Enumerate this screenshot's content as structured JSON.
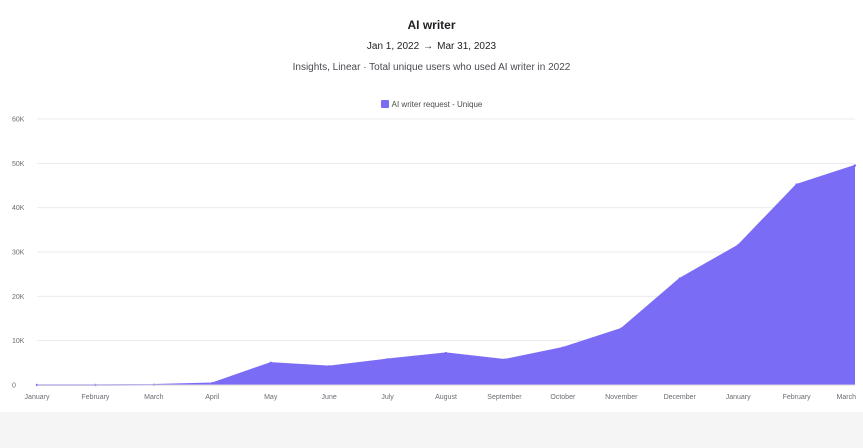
{
  "header": {
    "title": "AI writer",
    "date_start": "Jan 1, 2022",
    "date_arrow": "→",
    "date_end": "Mar 31, 2023",
    "subtitle": "Insights, Linear · Total unique users who used AI writer in 2022"
  },
  "legend": {
    "label": "AI writer request - Unique",
    "color": "#7b6cf6"
  },
  "chart_data": {
    "type": "area",
    "title": "AI writer",
    "subtitle": "Insights, Linear · Total unique users who used AI writer in 2022",
    "xlabel": "",
    "ylabel": "",
    "ylim": [
      0,
      60000
    ],
    "y_ticks": [
      0,
      10000,
      20000,
      30000,
      40000,
      50000,
      60000
    ],
    "y_tick_labels": [
      "0",
      "10K",
      "20K",
      "30K",
      "40K",
      "50K",
      "60K"
    ],
    "grid": true,
    "legend_position": "top-center",
    "categories": [
      "January",
      "February",
      "March",
      "April",
      "May",
      "June",
      "July",
      "August",
      "September",
      "October",
      "November",
      "December",
      "January",
      "February",
      "March"
    ],
    "series": [
      {
        "name": "AI writer request - Unique",
        "color": "#7b6cf6",
        "values": [
          0,
          0,
          50,
          400,
          5000,
          4200,
          5800,
          7200,
          5700,
          8400,
          12700,
          24000,
          31500,
          45200,
          49500
        ]
      }
    ]
  }
}
